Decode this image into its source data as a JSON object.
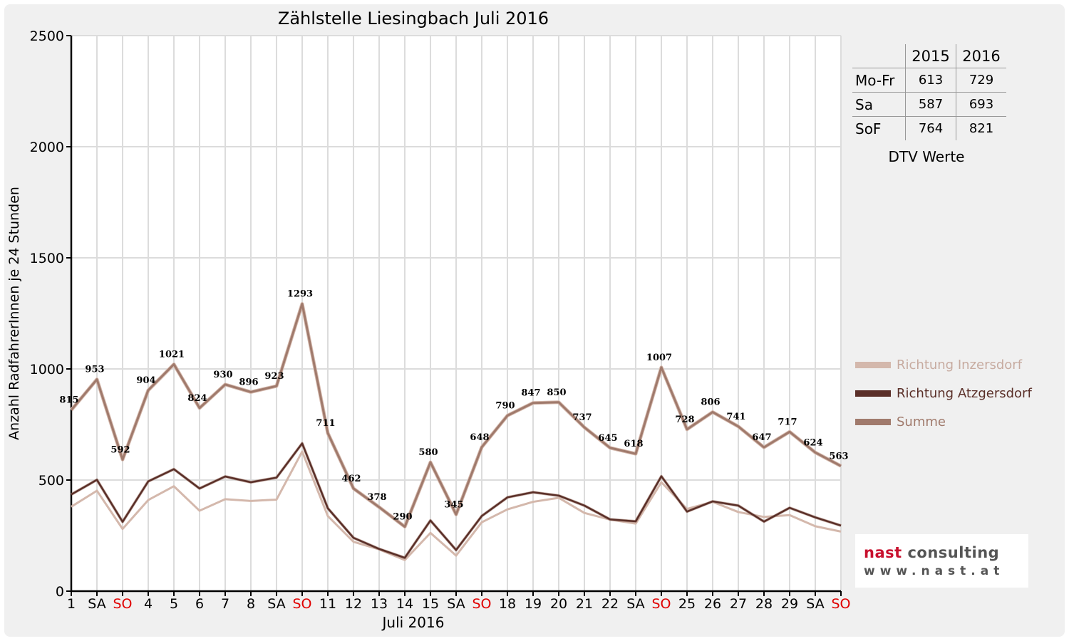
{
  "chart_data": {
    "type": "line",
    "title": "Zählstelle Liesingbach Juli 2016",
    "xlabel": "Juli 2016",
    "ylabel": "Anzahl RadfahrerInnen je 24 Stunden",
    "ylim": [
      0,
      2500
    ],
    "yticks": [
      "0",
      "500",
      "1000",
      "1500",
      "2000",
      "2500"
    ],
    "categories": [
      "1",
      "SA",
      "SO",
      "4",
      "5",
      "6",
      "7",
      "8",
      "SA",
      "SO",
      "11",
      "12",
      "13",
      "14",
      "15",
      "SA",
      "SO",
      "18",
      "19",
      "20",
      "21",
      "22",
      "SA",
      "SO",
      "25",
      "26",
      "27",
      "28",
      "29",
      "SA",
      "SO"
    ],
    "weekend_categories": [
      2,
      9,
      16,
      23,
      30
    ],
    "grid": true,
    "legend_position": "right",
    "series": [
      {
        "name": "Richtung Inzersdorf",
        "color": "#d4b8ac",
        "values": [
          380,
          452,
          280,
          410,
          472,
          362,
          414,
          406,
          412,
          628,
          338,
          222,
          188,
          140,
          262,
          160,
          310,
          368,
          402,
          420,
          352,
          322,
          304,
          490,
          370,
          402,
          356,
          334,
          342,
          292,
          268
        ]
      },
      {
        "name": "Richtung Atzgersdorf",
        "color": "#5a2f28",
        "values": [
          435,
          501,
          312,
          494,
          549,
          462,
          516,
          490,
          511,
          665,
          373,
          240,
          190,
          150,
          318,
          185,
          338,
          422,
          445,
          430,
          385,
          323,
          314,
          517,
          358,
          404,
          385,
          313,
          375,
          332,
          295
        ]
      },
      {
        "name": "Summe",
        "color": "#a07a6c",
        "values": [
          815,
          953,
          592,
          904,
          1021,
          824,
          930,
          896,
          923,
          1293,
          711,
          462,
          378,
          290,
          580,
          345,
          648,
          790,
          847,
          850,
          737,
          645,
          618,
          1007,
          728,
          806,
          741,
          647,
          717,
          624,
          563
        ]
      }
    ],
    "data_labels": [
      "815",
      "953",
      "592",
      "904",
      "1021",
      "824",
      "930",
      "896",
      "923",
      "1293",
      "711",
      "462",
      "378",
      "290",
      "580",
      "345",
      "648",
      "790",
      "847",
      "850",
      "737",
      "645",
      "618",
      "1007",
      "728",
      "806",
      "741",
      "647",
      "717",
      "624",
      "563"
    ]
  },
  "dtv_table": {
    "headers": [
      "",
      "2015",
      "2016"
    ],
    "rows": [
      {
        "label": "Mo-Fr",
        "v2015": "613",
        "v2016": "729"
      },
      {
        "label": "Sa",
        "v2015": "587",
        "v2016": "693"
      },
      {
        "label": "SoF",
        "v2015": "764",
        "v2016": "821"
      }
    ],
    "caption": "DTV Werte"
  },
  "legend": [
    {
      "label": "Richtung Inzersdorf",
      "color": "#d4b8ac"
    },
    {
      "label": "Richtung Atzgersdorf",
      "color": "#5a2f28"
    },
    {
      "label": "Summe",
      "color": "#a07a6c"
    }
  ],
  "logo": {
    "brand_red": "nast",
    "brand_grey": "consulting",
    "url": "www.nast.at"
  },
  "colors": {
    "weekend_tick": "#e00000",
    "grid": "#dcdcdc"
  }
}
